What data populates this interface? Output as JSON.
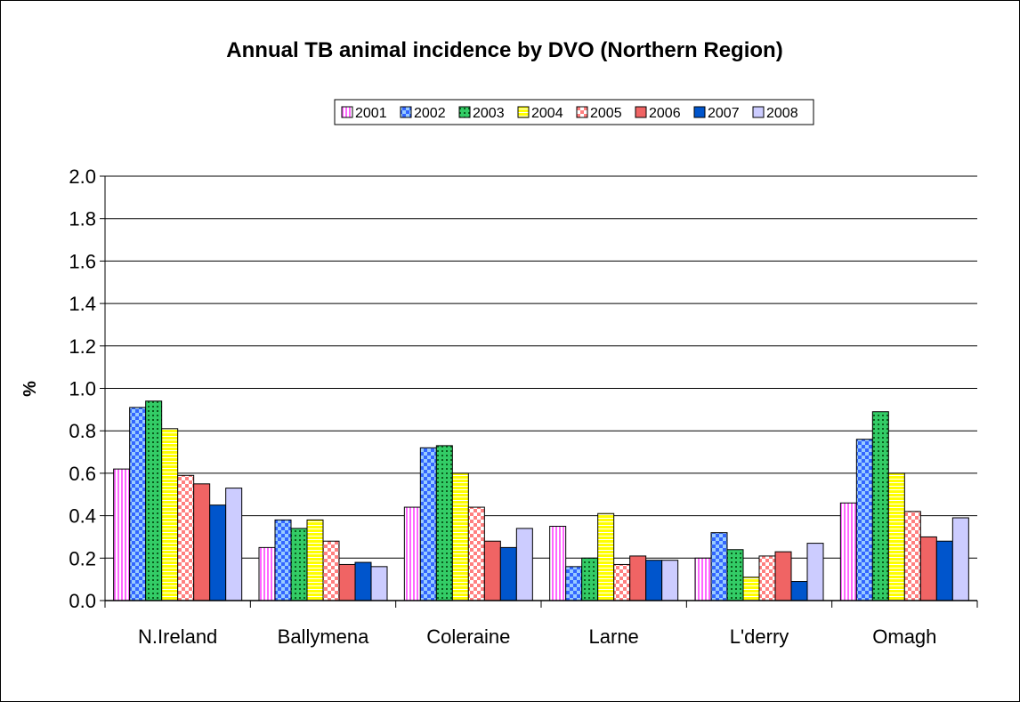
{
  "chart_data": {
    "type": "bar",
    "title": "Annual TB animal incidence by DVO (Northern Region)",
    "xlabel": "",
    "ylabel": "%",
    "ylim": [
      0,
      2.0
    ],
    "yticks": [
      "0.0",
      "0.2",
      "0.4",
      "0.6",
      "0.8",
      "1.0",
      "1.2",
      "1.4",
      "1.6",
      "1.8",
      "2.0"
    ],
    "grid": true,
    "legend_position": "top",
    "categories": [
      "N.Ireland",
      "Ballymena",
      "Coleraine",
      "Larne",
      "L'derry",
      "Omagh"
    ],
    "series": [
      {
        "name": "2001",
        "values": [
          0.62,
          0.25,
          0.44,
          0.35,
          0.2,
          0.46
        ],
        "color": "#ff66ff",
        "pattern": "vlines"
      },
      {
        "name": "2002",
        "values": [
          0.91,
          0.38,
          0.72,
          0.16,
          0.32,
          0.76
        ],
        "color": "#3366ff",
        "pattern": "checker"
      },
      {
        "name": "2003",
        "values": [
          0.94,
          0.34,
          0.73,
          0.2,
          0.24,
          0.89
        ],
        "color": "#33cc66",
        "pattern": "dots"
      },
      {
        "name": "2004",
        "values": [
          0.81,
          0.38,
          0.6,
          0.41,
          0.11,
          0.6
        ],
        "color": "#ffff00",
        "pattern": "hlines"
      },
      {
        "name": "2005",
        "values": [
          0.59,
          0.28,
          0.44,
          0.17,
          0.21,
          0.42
        ],
        "color": "#ff9999",
        "pattern": "check"
      },
      {
        "name": "2006",
        "values": [
          0.55,
          0.17,
          0.28,
          0.21,
          0.23,
          0.3
        ],
        "color": "#f06464",
        "pattern": "solid"
      },
      {
        "name": "2007",
        "values": [
          0.45,
          0.18,
          0.25,
          0.19,
          0.09,
          0.28
        ],
        "color": "#0055cc",
        "pattern": "solid"
      },
      {
        "name": "2008",
        "values": [
          0.53,
          0.16,
          0.34,
          0.19,
          0.27,
          0.39
        ],
        "color": "#ccccff",
        "pattern": "solid"
      }
    ]
  }
}
